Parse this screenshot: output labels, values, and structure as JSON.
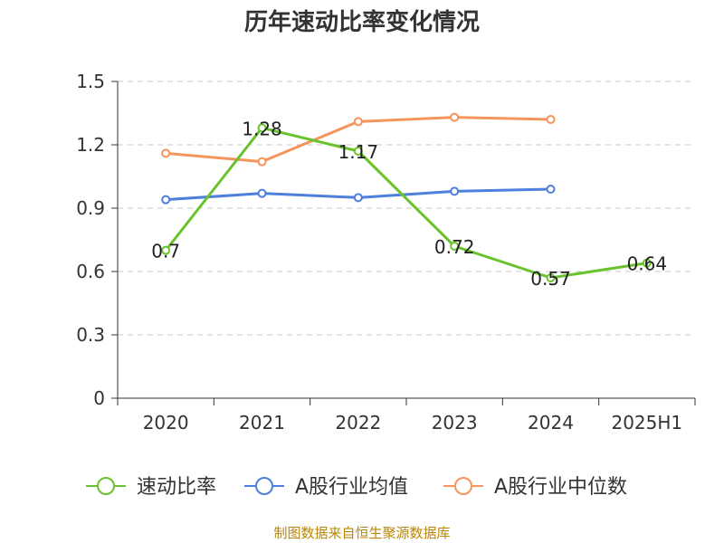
{
  "chart_data": {
    "type": "line",
    "title": "历年速动比率变化情况",
    "categories": [
      "2020",
      "2021",
      "2022",
      "2023",
      "2024",
      "2025H1"
    ],
    "yticks": [
      "0",
      "0.3",
      "0.6",
      "0.9",
      "1.2",
      "1.5"
    ],
    "ylim": [
      0,
      1.5
    ],
    "grid": true,
    "legend_position": "bottom",
    "series": [
      {
        "name": "速动比率",
        "color": "#6ac22d",
        "values": [
          0.7,
          1.28,
          1.17,
          0.72,
          0.57,
          0.64
        ],
        "labels": [
          "0.7",
          "1.28",
          "1.17",
          "0.72",
          "0.57",
          "0.64"
        ]
      },
      {
        "name": "A股行业均值",
        "color": "#4f7fdc",
        "values": [
          0.94,
          0.97,
          0.95,
          0.98,
          0.99,
          null
        ]
      },
      {
        "name": "A股行业中位数",
        "color": "#f5945c",
        "values": [
          1.16,
          1.12,
          1.31,
          1.33,
          1.32,
          null
        ]
      }
    ],
    "source": "制图数据来自恒生聚源数据库"
  }
}
